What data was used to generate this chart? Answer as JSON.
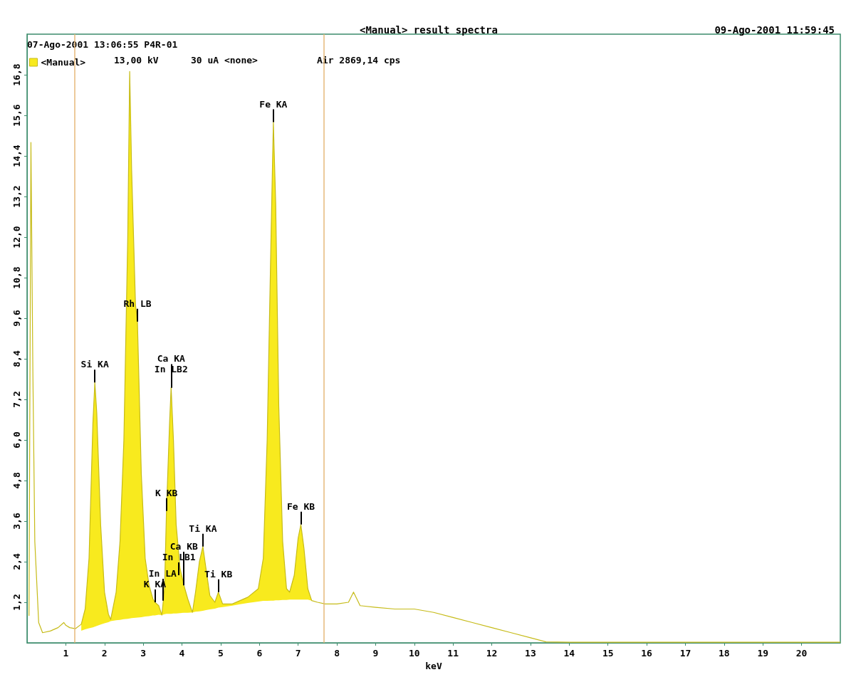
{
  "chart_data": {
    "type": "line",
    "title": "<Manual> result spectra",
    "subtitle": "09-Ago-2001 11:59:45",
    "xlabel": "keV",
    "annotations": [
      "07-Ago-2001 13:06:55 P4R-01",
      "13,00 kV",
      "30 uA <none>",
      "Air 2869,14 cps",
      {
        "text": "Si KA",
        "x": 1.75,
        "y": 7.7
      },
      {
        "text": "Rh LB",
        "x": 2.85,
        "y": 9.5
      },
      {
        "text": "K KA",
        "x": 3.3,
        "y": 1.2
      },
      {
        "text": "In LA",
        "x": 3.5,
        "y": 1.25
      },
      {
        "text": "In LB1",
        "x": 3.92,
        "y": 2.0
      },
      {
        "text": "Ca KB",
        "x": 4.05,
        "y": 1.7
      },
      {
        "text": "K KB",
        "x": 3.6,
        "y": 3.9
      },
      {
        "text": "In LB2",
        "x": 3.72,
        "y": 7.55
      },
      {
        "text": "Ca KA",
        "x": 3.72,
        "y": 7.55
      },
      {
        "text": "Ti KA",
        "x": 4.54,
        "y": 2.85
      },
      {
        "text": "Ti KB",
        "x": 4.94,
        "y": 1.5
      },
      {
        "text": "Fe KA",
        "x": 6.36,
        "y": 15.4
      },
      {
        "text": "Fe KB",
        "x": 7.07,
        "y": 3.5
      }
    ],
    "series": [
      {
        "name": "<Manual>",
        "color": "#c6bb18",
        "x": [
          0.05,
          0.1,
          0.15,
          0.2,
          0.3,
          0.4,
          0.6,
          0.8,
          0.95,
          1.0,
          1.1,
          1.25,
          1.4,
          1.5,
          1.6,
          1.7,
          1.75,
          1.8,
          1.9,
          2.0,
          2.1,
          2.16,
          2.3,
          2.4,
          2.5,
          2.6,
          2.65,
          2.7,
          2.8,
          2.85,
          2.95,
          3.05,
          3.15,
          3.25,
          3.3,
          3.4,
          3.48,
          3.55,
          3.6,
          3.68,
          3.72,
          3.78,
          3.85,
          3.95,
          4.05,
          4.15,
          4.27,
          4.35,
          4.45,
          4.54,
          4.62,
          4.72,
          4.85,
          4.94,
          5.05,
          5.3,
          5.5,
          5.7,
          5.97,
          6.1,
          6.2,
          6.3,
          6.36,
          6.42,
          6.5,
          6.6,
          6.7,
          6.78,
          6.9,
          7.0,
          7.07,
          7.15,
          7.25,
          7.35,
          7.5,
          7.7,
          8.0,
          8.3,
          8.43,
          8.6,
          9.0,
          9.5,
          10.0,
          10.5,
          11.0,
          11.5,
          12.0,
          12.5,
          13.0,
          13.4,
          14.0,
          21.0
        ],
        "values": [
          0.8,
          14.8,
          8,
          3,
          0.6,
          0.3,
          0.35,
          0.45,
          0.6,
          0.52,
          0.45,
          0.42,
          0.55,
          1.0,
          2.5,
          6.5,
          7.7,
          6.8,
          3.5,
          1.5,
          0.85,
          0.69,
          1.5,
          3.0,
          6.0,
          12,
          16.9,
          14,
          10,
          9.5,
          5,
          2.5,
          1.7,
          1.3,
          1.2,
          1.1,
          0.82,
          1.6,
          3.9,
          6.5,
          7.55,
          6.0,
          3.5,
          2.2,
          1.7,
          1.3,
          0.9,
          1.5,
          2.4,
          2.85,
          2.2,
          1.4,
          1.2,
          1.5,
          1.15,
          1.15,
          1.25,
          1.35,
          1.6,
          2.5,
          6,
          12,
          15.4,
          13,
          7,
          3,
          1.6,
          1.5,
          2.0,
          3.1,
          3.5,
          2.8,
          1.6,
          1.25,
          1.2,
          1.15,
          1.15,
          1.2,
          1.5,
          1.1,
          1.05,
          1.0,
          1.0,
          0.9,
          0.75,
          0.6,
          0.45,
          0.3,
          0.15,
          0.03,
          0.02,
          0.02
        ],
        "lower": [
          null,
          null,
          null,
          null,
          null,
          null,
          null,
          null,
          null,
          null,
          null,
          null,
          0.36,
          0.4,
          0.43,
          0.46,
          0.48,
          0.5,
          0.54,
          0.58,
          0.61,
          0.64,
          0.67,
          0.68,
          0.7,
          0.71,
          0.72,
          0.73,
          0.74,
          0.75,
          0.76,
          0.78,
          0.79,
          0.81,
          0.81,
          0.83,
          0.82,
          0.85,
          0.86,
          0.86,
          0.86,
          0.87,
          0.87,
          0.88,
          0.89,
          0.89,
          0.9,
          0.92,
          0.93,
          0.95,
          0.97,
          0.99,
          1.01,
          1.04,
          1.06,
          1.1,
          1.14,
          1.18,
          1.22,
          1.24,
          1.24,
          1.25,
          1.25,
          1.26,
          1.26,
          1.27,
          1.27,
          1.28,
          1.28,
          1.28,
          1.28,
          1.28,
          1.28,
          1.25,
          null,
          null,
          null,
          null,
          null,
          null,
          null,
          null,
          null,
          null,
          null,
          null,
          null,
          null,
          null,
          null,
          null,
          null
        ],
        "upper": [
          null,
          null,
          null,
          null,
          null,
          null,
          null,
          null,
          null,
          null,
          null,
          null,
          0.55,
          1.0,
          2.5,
          6.5,
          7.7,
          6.8,
          3.5,
          1.5,
          0.85,
          0.69,
          1.5,
          3.0,
          6.0,
          12,
          16.9,
          14,
          10,
          9.5,
          5,
          2.5,
          1.7,
          1.3,
          1.2,
          1.1,
          0.82,
          1.6,
          3.9,
          6.5,
          7.55,
          6.0,
          3.5,
          2.2,
          1.7,
          1.3,
          0.9,
          1.5,
          2.4,
          2.85,
          2.2,
          1.4,
          1.2,
          1.5,
          1.15,
          1.15,
          1.25,
          1.35,
          1.6,
          2.5,
          6,
          12,
          15.4,
          13,
          7,
          3,
          1.6,
          1.5,
          2.0,
          3.1,
          3.5,
          2.8,
          1.6,
          1.25,
          null,
          null,
          null,
          null,
          null,
          null,
          null,
          null,
          null,
          null,
          null,
          null,
          null,
          null,
          null,
          null,
          null,
          null
        ]
      }
    ],
    "ref_lines": [
      {
        "axis": "x",
        "value": 1.22,
        "color": "#e6b87a"
      },
      {
        "axis": "x",
        "value": 7.67,
        "color": "#e6b87a"
      }
    ],
    "xlim": [
      0,
      21
    ],
    "xticks": [
      1,
      2,
      3,
      4,
      5,
      6,
      7,
      8,
      9,
      10,
      11,
      12,
      13,
      14,
      15,
      16,
      17,
      18,
      19,
      20
    ],
    "ylim": [
      0,
      18
    ],
    "yticks": [
      {
        "value": 1.2,
        "label": "1,2"
      },
      {
        "value": 2.4,
        "label": "2,4"
      },
      {
        "value": 3.6,
        "label": "3,6"
      },
      {
        "value": 4.8,
        "label": "4,8"
      },
      {
        "value": 6.0,
        "label": "6,0"
      },
      {
        "value": 7.2,
        "label": "7,2"
      },
      {
        "value": 8.4,
        "label": "8,4"
      },
      {
        "value": 9.6,
        "label": "9,6"
      },
      {
        "value": 10.8,
        "label": "10,8"
      },
      {
        "value": 12.0,
        "label": "12,0"
      },
      {
        "value": 13.2,
        "label": "13,2"
      },
      {
        "value": 14.4,
        "label": "14,4"
      },
      {
        "value": 15.6,
        "label": "15,6"
      },
      {
        "value": 16.8,
        "label": "16,8"
      }
    ],
    "grid": false,
    "legend": "top left",
    "marker": "none",
    "line_style": "solid"
  }
}
